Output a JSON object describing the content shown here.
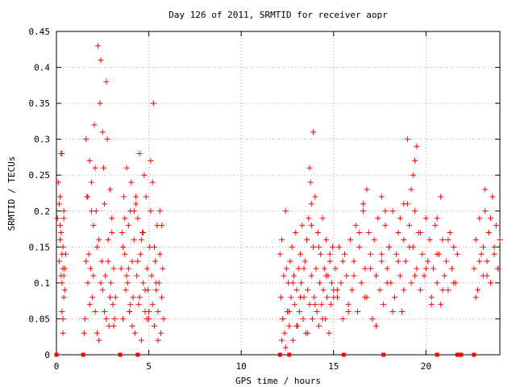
{
  "chart_data": {
    "type": "scatter",
    "title": "Day 126 of 2011, SRMTID for receiver aopr",
    "xlabel": "GPS time / hours",
    "ylabel": "SRMTID / TECUs",
    "xlim": [
      0,
      24
    ],
    "ylim": [
      0,
      0.45
    ],
    "xticks": [
      0,
      5,
      10,
      15,
      20
    ],
    "yticks": [
      0,
      0.05,
      0.1,
      0.15,
      0.2,
      0.25,
      0.3,
      0.35,
      0.4,
      0.45
    ],
    "xtick_labels": [
      "0",
      "5",
      "10",
      "15",
      "20"
    ],
    "ytick_labels": [
      "0",
      "0.05",
      "0.1",
      "0.15",
      "0.2",
      "0.25",
      "0.3",
      "0.35",
      "0.4",
      "0.45"
    ],
    "grid": true,
    "marker": "+",
    "color": "#ff0000",
    "legend": "none",
    "series": [
      {
        "values_x": [
          0.05,
          0.1,
          0.15,
          0.2,
          0.25,
          0.3,
          0.35,
          0.4,
          0.45,
          0.5,
          0.2,
          0.25,
          0.3,
          0.35,
          0.4,
          0.3,
          0.35,
          0.4,
          0.15,
          0.2,
          0.25,
          0.3,
          0.35,
          0.4,
          0.45,
          1.5,
          1.55,
          1.6,
          1.65,
          1.7,
          1.75,
          1.8,
          1.85,
          1.9,
          1.95,
          2.0,
          2.05,
          2.1,
          2.15,
          2.2,
          2.25,
          2.3,
          2.35,
          2.4,
          2.45,
          2.5,
          2.55,
          2.6,
          2.65,
          2.7,
          2.75,
          2.8,
          2.85,
          2.9,
          2.95,
          3.0,
          3.05,
          3.1,
          3.15,
          3.2,
          1.6,
          1.7,
          1.8,
          1.9,
          2.0,
          2.1,
          2.2,
          2.3,
          2.4,
          2.5,
          2.6,
          2.7,
          2.8,
          2.9,
          3.0,
          3.1,
          3.5,
          3.55,
          3.6,
          3.65,
          3.7,
          3.75,
          3.8,
          3.85,
          3.9,
          3.95,
          4.0,
          4.05,
          4.1,
          4.15,
          4.2,
          4.25,
          4.3,
          4.35,
          4.4,
          4.45,
          4.5,
          4.55,
          4.6,
          4.65,
          4.7,
          4.75,
          4.8,
          4.85,
          4.9,
          4.95,
          5.0,
          5.05,
          5.1,
          5.15,
          5.2,
          5.25,
          5.3,
          5.35,
          5.4,
          5.45,
          5.5,
          5.55,
          5.6,
          5.65,
          5.7,
          5.75,
          5.8,
          3.6,
          3.8,
          4.0,
          4.2,
          4.4,
          4.6,
          4.8,
          5.0,
          5.2,
          5.4,
          5.6,
          3.7,
          3.9,
          4.1,
          4.3,
          4.5,
          4.7,
          4.9,
          5.1,
          5.3,
          5.5,
          5.7,
          12.1,
          12.15,
          12.2,
          12.25,
          12.3,
          12.35,
          12.4,
          12.45,
          12.5,
          12.55,
          12.6,
          12.65,
          12.7,
          12.75,
          12.8,
          12.85,
          12.9,
          12.95,
          13.0,
          13.05,
          13.1,
          13.15,
          13.2,
          13.25,
          13.3,
          13.35,
          13.4,
          13.45,
          13.5,
          13.55,
          13.6,
          13.65,
          13.7,
          13.75,
          13.8,
          13.85,
          13.9,
          13.95,
          14.0,
          14.05,
          14.1,
          14.15,
          14.2,
          14.25,
          14.3,
          14.35,
          14.4,
          14.45,
          14.5,
          14.55,
          14.6,
          14.65,
          14.7,
          14.75,
          14.8,
          14.85,
          14.9,
          14.95,
          15.0,
          12.2,
          12.4,
          12.6,
          12.8,
          13.0,
          13.2,
          13.4,
          13.6,
          13.8,
          14.0,
          14.2,
          14.4,
          14.6,
          14.8,
          15.0,
          13.9,
          13.7,
          13.8,
          15.1,
          15.2,
          15.3,
          15.4,
          15.5,
          15.6,
          15.7,
          15.8,
          15.9,
          16.0,
          16.1,
          16.2,
          16.3,
          16.4,
          16.5,
          16.6,
          16.7,
          16.8,
          16.9,
          17.0,
          17.1,
          17.2,
          17.3,
          17.4,
          17.5,
          17.6,
          17.7,
          17.8,
          17.9,
          18.0,
          18.1,
          18.2,
          18.3,
          18.4,
          18.5,
          18.6,
          18.7,
          18.8,
          18.9,
          19.0,
          19.1,
          19.2,
          19.3,
          19.4,
          19.5,
          19.6,
          19.7,
          19.8,
          19.9,
          20.0,
          20.1,
          20.2,
          20.3,
          20.4,
          20.5,
          20.6,
          20.7,
          20.8,
          20.9,
          21.0,
          21.1,
          21.2,
          21.3,
          21.4,
          21.5,
          21.6,
          21.7,
          15.2,
          15.5,
          15.8,
          16.1,
          16.4,
          16.7,
          17.0,
          17.3,
          17.6,
          17.9,
          18.2,
          18.5,
          18.8,
          19.1,
          19.4,
          19.7,
          20.0,
          20.3,
          20.6,
          20.9,
          21.2,
          21.5,
          19.0,
          19.2,
          19.4,
          19.3,
          19.5,
          18.6,
          18.8,
          17.6,
          17.8,
          16.8,
          16.6,
          20.6,
          20.8,
          22.6,
          22.7,
          22.8,
          22.9,
          23.0,
          23.1,
          23.2,
          23.3,
          23.4,
          23.5,
          23.6,
          23.7,
          23.8,
          23.9,
          24.0,
          22.7,
          22.9,
          23.1,
          23.3,
          23.5,
          23.7,
          23.9,
          23.2,
          23.4,
          0.0,
          1.45,
          3.45,
          4.4,
          12.1,
          12.6,
          15.55,
          17.7,
          20.6,
          21.7,
          21.9,
          22.6
        ],
        "values_y": [
          0.19,
          0.24,
          0.13,
          0.16,
          0.28,
          0.1,
          0.12,
          0.2,
          0.09,
          0.14,
          0.22,
          0.17,
          0.06,
          0.03,
          0.11,
          0.28,
          0.15,
          0.08,
          0.21,
          0.18,
          0.11,
          0.14,
          0.05,
          0.19,
          0.12,
          0.03,
          0.05,
          0.3,
          0.22,
          0.1,
          0.14,
          0.27,
          0.12,
          0.24,
          0.08,
          0.18,
          0.32,
          0.06,
          0.2,
          0.15,
          0.43,
          0.02,
          0.35,
          0.41,
          0.13,
          0.09,
          0.26,
          0.06,
          0.11,
          0.38,
          0.3,
          0.16,
          0.04,
          0.23,
          0.1,
          0.17,
          0.07,
          0.12,
          0.05,
          0.08,
          0.13,
          0.22,
          0.07,
          0.2,
          0.11,
          0.26,
          0.03,
          0.16,
          0.1,
          0.31,
          0.21,
          0.05,
          0.13,
          0.08,
          0.19,
          0.04,
          0.12,
          0.17,
          0.05,
          0.22,
          0.14,
          0.09,
          0.26,
          0.1,
          0.18,
          0.06,
          0.2,
          0.24,
          0.13,
          0.08,
          0.16,
          0.03,
          0.21,
          0.11,
          0.19,
          0.07,
          0.28,
          0.14,
          0.02,
          0.17,
          0.1,
          0.25,
          0.06,
          0.22,
          0.12,
          0.09,
          0.05,
          0.15,
          0.2,
          0.11,
          0.07,
          0.35,
          0.04,
          0.13,
          0.09,
          0.18,
          0.06,
          0.1,
          0.2,
          0.03,
          0.08,
          0.12,
          0.05,
          0.15,
          0.11,
          0.07,
          0.2,
          0.13,
          0.16,
          0.09,
          0.06,
          0.24,
          0.1,
          0.14,
          0.19,
          0.12,
          0.04,
          0.22,
          0.08,
          0.17,
          0.05,
          0.27,
          0.15,
          0.02,
          0.18,
          0.14,
          0.08,
          0.16,
          0.05,
          0.11,
          0.03,
          0.2,
          0.12,
          0.06,
          0.1,
          0.04,
          0.13,
          0.08,
          0.15,
          0.02,
          0.11,
          0.07,
          0.17,
          0.09,
          0.04,
          0.12,
          0.06,
          0.14,
          0.1,
          0.18,
          0.05,
          0.08,
          0.13,
          0.03,
          0.16,
          0.09,
          0.19,
          0.07,
          0.24,
          0.11,
          0.05,
          0.15,
          0.08,
          0.22,
          0.12,
          0.06,
          0.17,
          0.04,
          0.1,
          0.14,
          0.07,
          0.19,
          0.09,
          0.12,
          0.05,
          0.16,
          0.08,
          0.11,
          0.03,
          0.13,
          0.07,
          0.1,
          0.15,
          0.09,
          0.02,
          0.01,
          0.06,
          0.1,
          0.04,
          0.08,
          0.12,
          0.03,
          0.18,
          0.07,
          0.15,
          0.05,
          0.11,
          0.14,
          0.08,
          0.31,
          0.26,
          0.21,
          0.12,
          0.08,
          0.15,
          0.1,
          0.05,
          0.14,
          0.11,
          0.07,
          0.16,
          0.09,
          0.13,
          0.18,
          0.06,
          0.15,
          0.1,
          0.2,
          0.12,
          0.08,
          0.17,
          0.14,
          0.05,
          0.16,
          0.11,
          0.19,
          0.09,
          0.13,
          0.07,
          0.18,
          0.12,
          0.15,
          0.1,
          0.2,
          0.08,
          0.14,
          0.17,
          0.11,
          0.06,
          0.16,
          0.13,
          0.21,
          0.18,
          0.1,
          0.15,
          0.2,
          0.12,
          0.17,
          0.09,
          0.14,
          0.11,
          0.19,
          0.13,
          0.16,
          0.08,
          0.12,
          0.18,
          0.1,
          0.14,
          0.07,
          0.16,
          0.11,
          0.13,
          0.09,
          0.17,
          0.12,
          0.15,
          0.1,
          0.14,
          0.09,
          0.13,
          0.06,
          0.11,
          0.17,
          0.08,
          0.12,
          0.04,
          0.14,
          0.1,
          0.06,
          0.13,
          0.09,
          0.15,
          0.11,
          0.17,
          0.12,
          0.07,
          0.14,
          0.09,
          0.16,
          0.1,
          0.3,
          0.23,
          0.27,
          0.25,
          0.29,
          0.19,
          0.21,
          0.22,
          0.2,
          0.23,
          0.21,
          0.19,
          0.22,
          0.12,
          0.16,
          0.09,
          0.19,
          0.14,
          0.11,
          0.2,
          0.13,
          0.17,
          0.1,
          0.22,
          0.15,
          0.18,
          0.12,
          0.16,
          0.08,
          0.13,
          0.15,
          0.11,
          0.19,
          0.14,
          0.12,
          0.23,
          0.17,
          0.0,
          0.0,
          0.0,
          0.0,
          0.0,
          0.0,
          0.0,
          0.0,
          0.0,
          0.0,
          0.0,
          0.0
        ]
      }
    ]
  }
}
